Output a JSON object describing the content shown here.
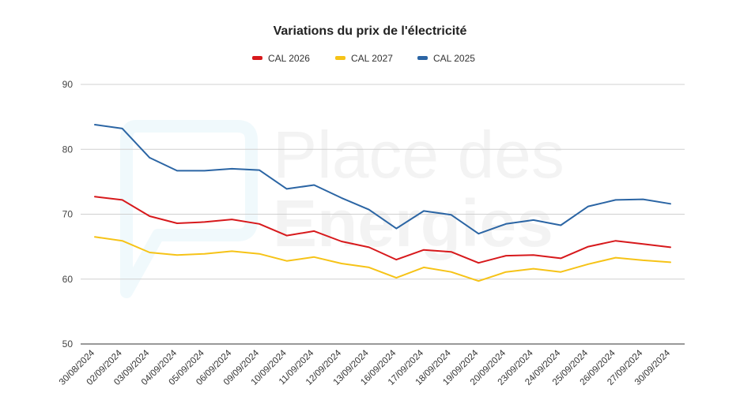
{
  "chart_data": {
    "type": "line",
    "title": "Variations du prix de l'électricité",
    "xlabel": "",
    "ylabel": "",
    "ylim": [
      50,
      90
    ],
    "yticks": [
      50,
      60,
      70,
      80,
      90
    ],
    "grid": true,
    "legend_position": "top",
    "categories": [
      "30/08/2024",
      "02/09/2024",
      "03/09/2024",
      "04/09/2024",
      "05/09/2024",
      "06/09/2024",
      "09/09/2024",
      "10/09/2024",
      "11/09/2024",
      "12/09/2024",
      "13/09/2024",
      "16/09/2024",
      "17/09/2024",
      "18/09/2024",
      "19/09/2024",
      "20/09/2024",
      "23/09/2024",
      "24/09/2024",
      "25/09/2024",
      "26/09/2024",
      "27/09/2024",
      "30/09/2024"
    ],
    "series": [
      {
        "name": "CAL 2026",
        "color": "#d7191c",
        "values": [
          72.7,
          72.2,
          69.7,
          68.6,
          68.8,
          69.2,
          68.5,
          66.7,
          67.4,
          65.8,
          64.9,
          63.0,
          64.5,
          64.2,
          62.5,
          63.6,
          63.7,
          63.2,
          65.0,
          65.9,
          65.4,
          64.9
        ]
      },
      {
        "name": "CAL 2027",
        "color": "#f6c317",
        "values": [
          66.5,
          65.9,
          64.1,
          63.7,
          63.9,
          64.3,
          63.9,
          62.8,
          63.4,
          62.4,
          61.8,
          60.2,
          61.8,
          61.1,
          59.7,
          61.1,
          61.6,
          61.1,
          62.3,
          63.3,
          62.9,
          62.6
        ]
      },
      {
        "name": "CAL 2025",
        "color": "#2b65a4",
        "values": [
          83.8,
          83.2,
          78.7,
          76.7,
          76.7,
          77.0,
          76.8,
          73.9,
          74.5,
          72.5,
          70.7,
          67.8,
          70.5,
          69.9,
          67.0,
          68.5,
          69.1,
          68.3,
          71.2,
          72.2,
          72.3,
          71.6
        ]
      }
    ]
  },
  "watermark": {
    "line1": "Place des",
    "line2": "Energies",
    "logo_color": "#2ea8d8"
  }
}
